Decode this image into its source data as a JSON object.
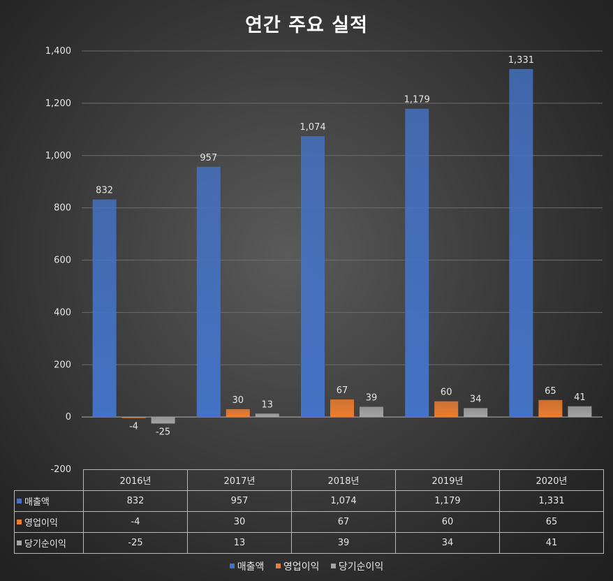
{
  "chart_data": {
    "type": "bar",
    "title": "연간 주요 실적",
    "categories": [
      "2016년",
      "2017년",
      "2018년",
      "2019년",
      "2020년"
    ],
    "series": [
      {
        "name": "매출액",
        "values": [
          832,
          957,
          1074,
          1179,
          1331
        ],
        "labels": [
          "832",
          "957",
          "1,074",
          "1,179",
          "1,331"
        ],
        "color": "#4472C4"
      },
      {
        "name": "영업이익",
        "values": [
          -4,
          30,
          67,
          60,
          65
        ],
        "labels": [
          "-4",
          "30",
          "67",
          "60",
          "65"
        ],
        "color": "#ED7D31"
      },
      {
        "name": "당기순이익",
        "values": [
          -25,
          13,
          39,
          34,
          41
        ],
        "labels": [
          "-25",
          "13",
          "39",
          "34",
          "41"
        ],
        "color": "#A5A5A5"
      }
    ],
    "ylim": [
      -200,
      1400
    ],
    "yticks": [
      -200,
      0,
      200,
      400,
      600,
      800,
      1000,
      1200,
      1400
    ],
    "ytick_labels": [
      "-200",
      "0",
      "200",
      "400",
      "600",
      "800",
      "1,000",
      "1,200",
      "1,400"
    ],
    "grid": true,
    "xlabel": "",
    "ylabel": "",
    "legend": "bottom",
    "data_table": true
  }
}
